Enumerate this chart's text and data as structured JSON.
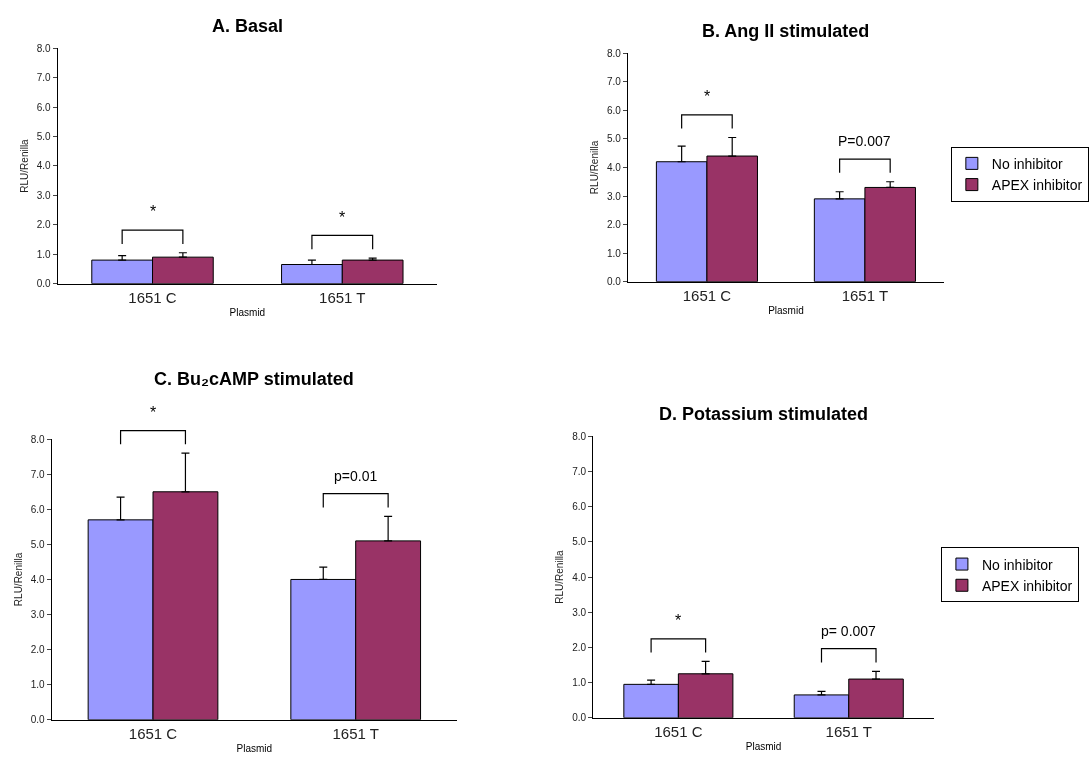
{
  "chart_data": [
    {
      "type": "bar",
      "title": "A. Basal",
      "xlabel": "Plasmid",
      "ylabel": "RLU/Renilla",
      "categories": [
        "1651 C",
        "1651 T"
      ],
      "ylim": [
        0,
        8
      ],
      "yticks": [
        {
          "value": 0,
          "label": "0.0"
        },
        {
          "value": 1,
          "label": "1.0"
        },
        {
          "value": 2,
          "label": "2.0"
        },
        {
          "value": 3,
          "label": "3.0"
        },
        {
          "value": 4,
          "label": "4.0"
        },
        {
          "value": 5,
          "label": "5.0"
        },
        {
          "value": 6,
          "label": "6.0"
        },
        {
          "value": 7,
          "label": "7.0"
        },
        {
          "value": 8,
          "label": "8.0"
        }
      ],
      "series": [
        {
          "color": "#9999ff",
          "values": [
            0.8,
            0.65
          ],
          "errors": [
            [
              0.8,
              0.95
            ],
            [
              0.65,
              0.8
            ]
          ]
        },
        {
          "color": "#993366",
          "values": [
            0.9,
            0.8
          ],
          "errors": [
            [
              0.9,
              1.05
            ],
            [
              0.8,
              0.87
            ]
          ]
        }
      ],
      "annotations": [
        "*",
        "*"
      ]
    },
    {
      "type": "bar",
      "title": "B. Ang II stimulated",
      "xlabel": "Plasmid",
      "ylabel": "RLU/Renilla",
      "categories": [
        "1651 C",
        "1651 T"
      ],
      "ylim": [
        0,
        8
      ],
      "yticks": [
        {
          "value": 0,
          "label": "0.0"
        },
        {
          "value": 1,
          "label": "1.0"
        },
        {
          "value": 2,
          "label": "2.0"
        },
        {
          "value": 3,
          "label": "3.0"
        },
        {
          "value": 4,
          "label": "4.0"
        },
        {
          "value": 5,
          "label": "5.0"
        },
        {
          "value": 6,
          "label": "6.0"
        },
        {
          "value": 7,
          "label": "7.0"
        },
        {
          "value": 8,
          "label": "8.0"
        }
      ],
      "legend": "right",
      "series": [
        {
          "name": "No inhibitor",
          "color": "#9999ff",
          "values": [
            4.2,
            2.9
          ],
          "errors": [
            [
              4.2,
              4.75
            ],
            [
              2.9,
              3.15
            ]
          ]
        },
        {
          "name": "APEX inhibitor",
          "color": "#993366",
          "values": [
            4.4,
            3.3
          ],
          "errors": [
            [
              4.4,
              5.05
            ],
            [
              3.3,
              3.5
            ]
          ]
        }
      ],
      "annotations": [
        "*",
        "P=0.007"
      ]
    },
    {
      "type": "bar",
      "title": "C. Bu₂cAMP stimulated",
      "xlabel": "Plasmid",
      "ylabel": "RLU/Renilla",
      "categories": [
        "1651 C",
        "1651 T"
      ],
      "ylim": [
        0,
        8
      ],
      "yticks": [
        {
          "value": 0,
          "label": "0.0"
        },
        {
          "value": 1,
          "label": "1.0"
        },
        {
          "value": 2,
          "label": "2.0"
        },
        {
          "value": 3,
          "label": "3.0"
        },
        {
          "value": 4,
          "label": "4.0"
        },
        {
          "value": 5,
          "label": "5.0"
        },
        {
          "value": 6,
          "label": "6.0"
        },
        {
          "value": 7,
          "label": "7.0"
        },
        {
          "value": 8,
          "label": "8.0"
        }
      ],
      "series": [
        {
          "color": "#9999ff",
          "values": [
            5.7,
            4.0
          ],
          "errors": [
            [
              5.7,
              6.35
            ],
            [
              4.0,
              4.35
            ]
          ]
        },
        {
          "color": "#993366",
          "values": [
            6.5,
            5.1
          ],
          "errors": [
            [
              6.5,
              7.6
            ],
            [
              5.1,
              5.8
            ]
          ]
        }
      ],
      "annotations": [
        "*",
        "p=0.01"
      ]
    },
    {
      "type": "bar",
      "title": "D. Potassium stimulated",
      "xlabel": "Plasmid",
      "ylabel": "RLU/Renilla",
      "categories": [
        "1651 C",
        "1651 T"
      ],
      "ylim": [
        0,
        8
      ],
      "yticks": [
        {
          "value": 0,
          "label": "0.0"
        },
        {
          "value": 1,
          "label": "1.0"
        },
        {
          "value": 2,
          "label": "2.0"
        },
        {
          "value": 3,
          "label": "3.0"
        },
        {
          "value": 4,
          "label": "4.0"
        },
        {
          "value": 5,
          "label": "5.0"
        },
        {
          "value": 6,
          "label": "6.0"
        },
        {
          "value": 7,
          "label": "7.0"
        },
        {
          "value": 8,
          "label": "8.0"
        }
      ],
      "legend": "right",
      "series": [
        {
          "name": "No inhibitor",
          "color": "#9999ff",
          "values": [
            0.95,
            0.65
          ],
          "errors": [
            [
              0.95,
              1.07
            ],
            [
              0.65,
              0.75
            ]
          ]
        },
        {
          "name": "APEX inhibitor",
          "color": "#993366",
          "values": [
            1.25,
            1.1
          ],
          "errors": [
            [
              1.25,
              1.6
            ],
            [
              1.1,
              1.32
            ]
          ]
        }
      ],
      "annotations": [
        "*",
        "p= 0.007"
      ]
    }
  ]
}
